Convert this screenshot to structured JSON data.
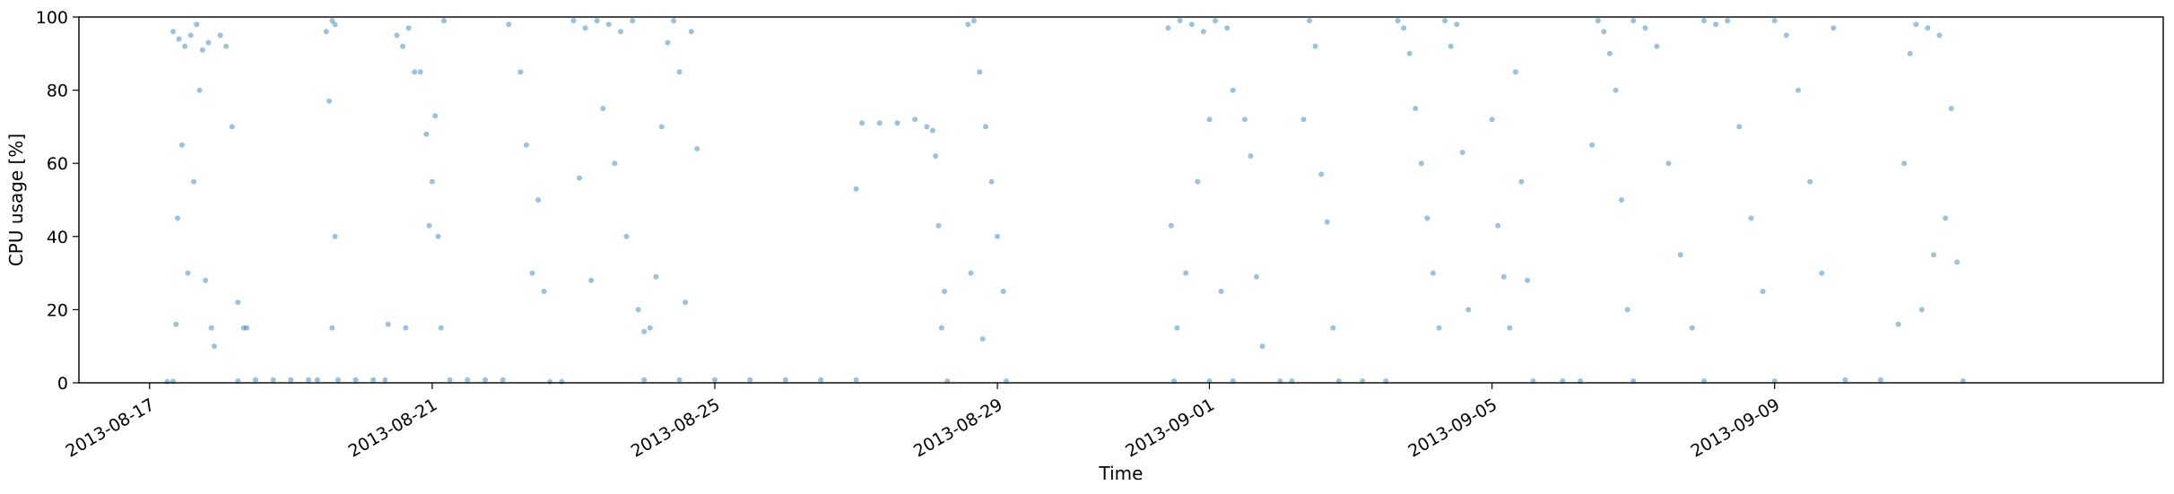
{
  "chart_data": {
    "type": "scatter",
    "title": "",
    "xlabel": "Time",
    "ylabel": "CPU usage [%]",
    "xlim": [
      "2013-08-16T00:00:00",
      "2013-09-14T12:00:00"
    ],
    "ylim": [
      0,
      100
    ],
    "grid": false,
    "legend": "none",
    "x_ticks": [
      "2013-08-17",
      "2013-08-21",
      "2013-08-25",
      "2013-08-29",
      "2013-09-01",
      "2013-09-05",
      "2013-09-09"
    ],
    "y_ticks": [
      "0",
      "20",
      "40",
      "60",
      "80",
      "100"
    ],
    "colors": {
      "points": "#1f77b4",
      "point_alpha": 0.45
    },
    "series": [
      {
        "points": [
          [
            "2013-08-17T08:00",
            96
          ],
          [
            "2013-08-17T10:00",
            94
          ],
          [
            "2013-08-17T12:00",
            92
          ],
          [
            "2013-08-17T14:00",
            95
          ],
          [
            "2013-08-17T16:00",
            98
          ],
          [
            "2013-08-17T18:00",
            91
          ],
          [
            "2013-08-17T20:00",
            93
          ],
          [
            "2013-08-17T09:00",
            16
          ],
          [
            "2013-08-17T09:30",
            45
          ],
          [
            "2013-08-17T11:00",
            65
          ],
          [
            "2013-08-17T13:00",
            30
          ],
          [
            "2013-08-17T15:00",
            55
          ],
          [
            "2013-08-17T17:00",
            80
          ],
          [
            "2013-08-17T19:00",
            28
          ],
          [
            "2013-08-17T21:00",
            15
          ],
          [
            "2013-08-17T22:00",
            10
          ],
          [
            "2013-08-18T00:00",
            95
          ],
          [
            "2013-08-18T02:00",
            92
          ],
          [
            "2013-08-18T04:00",
            70
          ],
          [
            "2013-08-18T06:00",
            22
          ],
          [
            "2013-08-18T08:00",
            15
          ],
          [
            "2013-08-18T09:00",
            15
          ],
          [
            "2013-08-17T06:00",
            0.3
          ],
          [
            "2013-08-17T08:00",
            0.4
          ],
          [
            "2013-08-18T06:00",
            0.5
          ],
          [
            "2013-08-18T12:00",
            0.8
          ],
          [
            "2013-08-18T18:00",
            0.8
          ],
          [
            "2013-08-19T00:00",
            0.8
          ],
          [
            "2013-08-19T06:00",
            0.8
          ],
          [
            "2013-08-19T09:00",
            0.8
          ],
          [
            "2013-08-19T12:00",
            96
          ],
          [
            "2013-08-19T14:00",
            99
          ],
          [
            "2013-08-19T15:00",
            98
          ],
          [
            "2013-08-19T13:00",
            77
          ],
          [
            "2013-08-19T14:00",
            15
          ],
          [
            "2013-08-19T15:00",
            40
          ],
          [
            "2013-08-19T16:00",
            0.8
          ],
          [
            "2013-08-19T22:00",
            0.8
          ],
          [
            "2013-08-20T04:00",
            0.8
          ],
          [
            "2013-08-20T08:00",
            0.8
          ],
          [
            "2013-08-20T09:00",
            16
          ],
          [
            "2013-08-20T12:00",
            95
          ],
          [
            "2013-08-20T14:00",
            92
          ],
          [
            "2013-08-20T16:00",
            97
          ],
          [
            "2013-08-20T18:00",
            85
          ],
          [
            "2013-08-20T20:00",
            85
          ],
          [
            "2013-08-20T22:00",
            68
          ],
          [
            "2013-08-20T23:00",
            43
          ],
          [
            "2013-08-21T00:00",
            55
          ],
          [
            "2013-08-21T01:00",
            73
          ],
          [
            "2013-08-21T02:00",
            40
          ],
          [
            "2013-08-21T03:00",
            15
          ],
          [
            "2013-08-21T04:00",
            99
          ],
          [
            "2013-08-20T15:00",
            15
          ],
          [
            "2013-08-21T06:00",
            0.8
          ],
          [
            "2013-08-21T12:00",
            0.8
          ],
          [
            "2013-08-21T18:00",
            0.8
          ],
          [
            "2013-08-22T00:00",
            0.8
          ],
          [
            "2013-08-22T02:00",
            98
          ],
          [
            "2013-08-22T06:00",
            85
          ],
          [
            "2013-08-22T08:00",
            65
          ],
          [
            "2013-08-22T10:00",
            30
          ],
          [
            "2013-08-22T12:00",
            50
          ],
          [
            "2013-08-22T14:00",
            25
          ],
          [
            "2013-08-22T16:00",
            0.3
          ],
          [
            "2013-08-22T20:00",
            0.3
          ],
          [
            "2013-08-23T00:00",
            99
          ],
          [
            "2013-08-23T04:00",
            97
          ],
          [
            "2013-08-23T08:00",
            99
          ],
          [
            "2013-08-23T12:00",
            98
          ],
          [
            "2013-08-23T16:00",
            96
          ],
          [
            "2013-08-23T20:00",
            99
          ],
          [
            "2013-08-23T02:00",
            56
          ],
          [
            "2013-08-23T06:00",
            28
          ],
          [
            "2013-08-23T10:00",
            75
          ],
          [
            "2013-08-23T14:00",
            60
          ],
          [
            "2013-08-23T18:00",
            40
          ],
          [
            "2013-08-23T22:00",
            20
          ],
          [
            "2013-08-24T00:00",
            14
          ],
          [
            "2013-08-24T02:00",
            15
          ],
          [
            "2013-08-24T04:00",
            29
          ],
          [
            "2013-08-24T06:00",
            70
          ],
          [
            "2013-08-24T08:00",
            93
          ],
          [
            "2013-08-24T10:00",
            99
          ],
          [
            "2013-08-24T12:00",
            85
          ],
          [
            "2013-08-24T14:00",
            22
          ],
          [
            "2013-08-24T16:00",
            96
          ],
          [
            "2013-08-24T18:00",
            64
          ],
          [
            "2013-08-24T00:00",
            0.8
          ],
          [
            "2013-08-24T12:00",
            0.8
          ],
          [
            "2013-08-25T00:00",
            0.8
          ],
          [
            "2013-08-25T12:00",
            0.8
          ],
          [
            "2013-08-26T00:00",
            0.8
          ],
          [
            "2013-08-26T12:00",
            0.8
          ],
          [
            "2013-08-27T00:00",
            0.8
          ],
          [
            "2013-08-27T00:00",
            53
          ],
          [
            "2013-08-27T02:00",
            71
          ],
          [
            "2013-08-27T08:00",
            71
          ],
          [
            "2013-08-27T14:00",
            71
          ],
          [
            "2013-08-27T20:00",
            72
          ],
          [
            "2013-08-28T00:00",
            70
          ],
          [
            "2013-08-28T02:00",
            69
          ],
          [
            "2013-08-28T03:00",
            62
          ],
          [
            "2013-08-28T04:00",
            43
          ],
          [
            "2013-08-28T05:00",
            15
          ],
          [
            "2013-08-28T06:00",
            25
          ],
          [
            "2013-08-28T07:00",
            0.5
          ],
          [
            "2013-08-28T14:00",
            98
          ],
          [
            "2013-08-28T16:00",
            99
          ],
          [
            "2013-08-28T18:00",
            85
          ],
          [
            "2013-08-28T20:00",
            70
          ],
          [
            "2013-08-28T22:00",
            55
          ],
          [
            "2013-08-29T00:00",
            40
          ],
          [
            "2013-08-29T02:00",
            25
          ],
          [
            "2013-08-29T03:00",
            0.5
          ],
          [
            "2013-08-28T15:00",
            30
          ],
          [
            "2013-08-28T19:00",
            12
          ],
          [
            "2013-08-31T10:00",
            97
          ],
          [
            "2013-08-31T14:00",
            99
          ],
          [
            "2013-08-31T18:00",
            98
          ],
          [
            "2013-08-31T22:00",
            96
          ],
          [
            "2013-09-01T02:00",
            99
          ],
          [
            "2013-09-01T06:00",
            97
          ],
          [
            "2013-08-31T11:00",
            43
          ],
          [
            "2013-08-31T13:00",
            15
          ],
          [
            "2013-08-31T16:00",
            30
          ],
          [
            "2013-08-31T20:00",
            55
          ],
          [
            "2013-09-01T00:00",
            72
          ],
          [
            "2013-09-01T04:00",
            25
          ],
          [
            "2013-09-01T08:00",
            80
          ],
          [
            "2013-08-31T12:00",
            0.5
          ],
          [
            "2013-09-01T00:00",
            0.5
          ],
          [
            "2013-09-01T08:00",
            0.5
          ],
          [
            "2013-09-01T12:00",
            72
          ],
          [
            "2013-09-01T14:00",
            62
          ],
          [
            "2013-09-01T16:00",
            29
          ],
          [
            "2013-09-01T18:00",
            10
          ],
          [
            "2013-09-02T00:00",
            0.5
          ],
          [
            "2013-09-02T04:00",
            0.5
          ],
          [
            "2013-09-02T10:00",
            99
          ],
          [
            "2013-09-02T12:00",
            92
          ],
          [
            "2013-09-02T14:00",
            57
          ],
          [
            "2013-09-02T16:00",
            44
          ],
          [
            "2013-09-02T18:00",
            15
          ],
          [
            "2013-09-02T08:00",
            72
          ],
          [
            "2013-09-02T20:00",
            0.5
          ],
          [
            "2013-09-03T04:00",
            0.5
          ],
          [
            "2013-09-03T12:00",
            0.5
          ],
          [
            "2013-09-03T16:00",
            99
          ],
          [
            "2013-09-03T18:00",
            97
          ],
          [
            "2013-09-03T20:00",
            90
          ],
          [
            "2013-09-03T22:00",
            75
          ],
          [
            "2013-09-04T00:00",
            60
          ],
          [
            "2013-09-04T02:00",
            45
          ],
          [
            "2013-09-04T04:00",
            30
          ],
          [
            "2013-09-04T06:00",
            15
          ],
          [
            "2013-09-04T08:00",
            99
          ],
          [
            "2013-09-04T10:00",
            92
          ],
          [
            "2013-09-04T12:00",
            98
          ],
          [
            "2013-09-04T14:00",
            63
          ],
          [
            "2013-09-04T16:00",
            20
          ],
          [
            "2013-09-05T00:00",
            72
          ],
          [
            "2013-09-05T02:00",
            43
          ],
          [
            "2013-09-05T04:00",
            29
          ],
          [
            "2013-09-05T06:00",
            15
          ],
          [
            "2013-09-05T08:00",
            85
          ],
          [
            "2013-09-05T10:00",
            55
          ],
          [
            "2013-09-05T12:00",
            28
          ],
          [
            "2013-09-05T14:00",
            0.5
          ],
          [
            "2013-09-06T00:00",
            0.5
          ],
          [
            "2013-09-06T06:00",
            0.5
          ],
          [
            "2013-09-06T10:00",
            65
          ],
          [
            "2013-09-06T12:00",
            99
          ],
          [
            "2013-09-06T14:00",
            96
          ],
          [
            "2013-09-06T16:00",
            90
          ],
          [
            "2013-09-06T18:00",
            80
          ],
          [
            "2013-09-06T20:00",
            50
          ],
          [
            "2013-09-06T22:00",
            20
          ],
          [
            "2013-09-07T00:00",
            99
          ],
          [
            "2013-09-07T04:00",
            97
          ],
          [
            "2013-09-07T08:00",
            92
          ],
          [
            "2013-09-07T12:00",
            60
          ],
          [
            "2013-09-07T16:00",
            35
          ],
          [
            "2013-09-07T20:00",
            15
          ],
          [
            "2013-09-08T00:00",
            99
          ],
          [
            "2013-09-08T04:00",
            98
          ],
          [
            "2013-09-08T08:00",
            99
          ],
          [
            "2013-09-08T12:00",
            70
          ],
          [
            "2013-09-08T16:00",
            45
          ],
          [
            "2013-09-08T20:00",
            25
          ],
          [
            "2013-09-09T00:00",
            99
          ],
          [
            "2013-09-09T04:00",
            95
          ],
          [
            "2013-09-09T08:00",
            80
          ],
          [
            "2013-09-09T12:00",
            55
          ],
          [
            "2013-09-09T16:00",
            30
          ],
          [
            "2013-09-09T20:00",
            97
          ],
          [
            "2013-09-07T00:00",
            0.5
          ],
          [
            "2013-09-08T00:00",
            0.5
          ],
          [
            "2013-09-09T00:00",
            0.5
          ],
          [
            "2013-09-10T00:00",
            0.8
          ],
          [
            "2013-09-10T12:00",
            0.8
          ],
          [
            "2013-09-10T18:00",
            16
          ],
          [
            "2013-09-10T20:00",
            60
          ],
          [
            "2013-09-10T22:00",
            90
          ],
          [
            "2013-09-11T00:00",
            98
          ],
          [
            "2013-09-11T04:00",
            97
          ],
          [
            "2013-09-11T08:00",
            95
          ],
          [
            "2013-09-11T12:00",
            75
          ],
          [
            "2013-09-11T02:00",
            20
          ],
          [
            "2013-09-11T06:00",
            35
          ],
          [
            "2013-09-11T10:00",
            45
          ],
          [
            "2013-09-11T14:00",
            33
          ],
          [
            "2013-09-11T16:00",
            0.5
          ]
        ]
      }
    ]
  }
}
